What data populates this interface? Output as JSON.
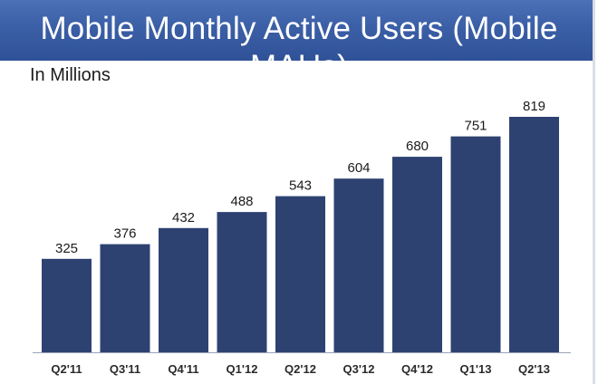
{
  "header": {
    "title": "Mobile Monthly Active Users (Mobile MAUs)"
  },
  "chart_data": {
    "type": "bar",
    "title": "Mobile Monthly Active Users (Mobile MAUs)",
    "subtitle": "In Millions",
    "categories": [
      "Q2'11",
      "Q3'11",
      "Q4'11",
      "Q1'12",
      "Q2'12",
      "Q3'12",
      "Q4'12",
      "Q1'13",
      "Q2'13"
    ],
    "values": [
      325,
      376,
      432,
      488,
      543,
      604,
      680,
      751,
      819
    ],
    "xlabel": "",
    "ylabel": "",
    "ylim": [
      0,
      1000
    ],
    "grid": false,
    "bar_color": "#2e4272"
  }
}
